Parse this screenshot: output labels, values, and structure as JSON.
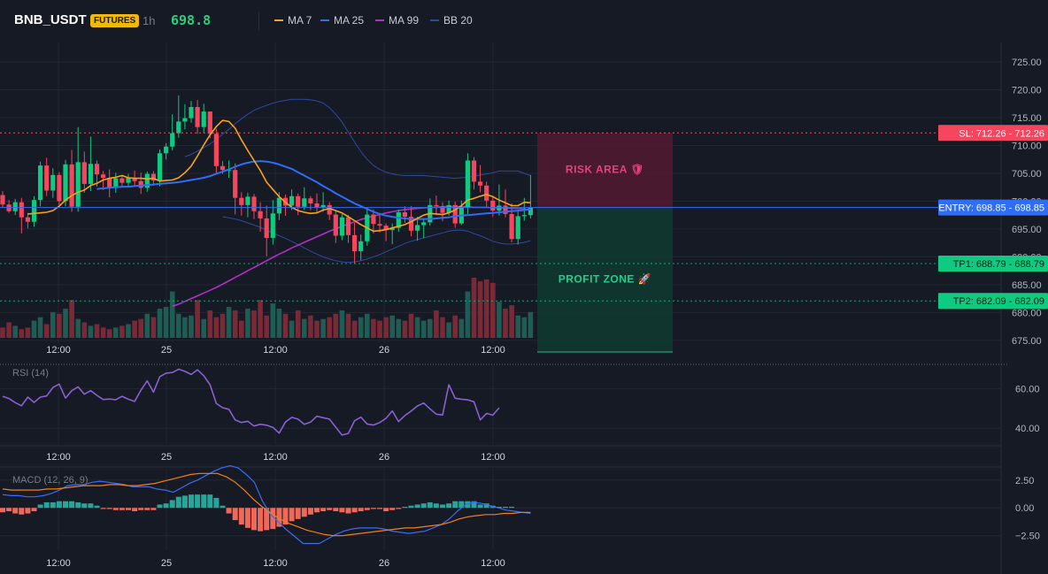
{
  "header": {
    "symbol": "BNB_USDT",
    "badge": "FUTURES",
    "interval": "1h",
    "price": "698.8"
  },
  "legend": [
    {
      "label": "MA 7",
      "color": "#f7a21b"
    },
    {
      "label": "MA 25",
      "color": "#2f6df6"
    },
    {
      "label": "MA 99",
      "color": "#b32fc7"
    },
    {
      "label": "BB 20",
      "color": "#2d4a9e"
    }
  ],
  "colors": {
    "up": "#0ecb81",
    "down": "#f6465d",
    "vol_up": "#1f5d54",
    "vol_down": "#7a2a37",
    "rsi": "#8a5fd1",
    "macd": "#3b6cf2",
    "signal": "#f2801b",
    "hist_up": "#26a69a",
    "hist_down": "#f0685a"
  },
  "chart_data": [
    {
      "type": "candlestick",
      "title": "BNB_USDT",
      "x_tick_labels": [
        "12:00",
        "25",
        "12:00",
        "26",
        "12:00"
      ],
      "y_tick_labels": [
        "725.00",
        "720.00",
        "715.00",
        "710.00",
        "705.00",
        "700.00",
        "695.00",
        "690.00",
        "685.00",
        "680.00",
        "675.00"
      ],
      "ylim": [
        674.5,
        728.5
      ],
      "candles": [
        [
          701.1,
          701.8,
          698.8,
          699.4
        ],
        [
          699.4,
          700.2,
          697.9,
          698.2
        ],
        [
          698.2,
          700.4,
          697.5,
          699.8
        ],
        [
          699.8,
          700.6,
          694.2,
          697.1
        ],
        [
          697.1,
          697.9,
          695.1,
          696.3
        ],
        [
          696.3,
          700.9,
          695.4,
          700.2
        ],
        [
          700.2,
          707.1,
          699.1,
          706.4
        ],
        [
          706.4,
          707.8,
          700.9,
          701.9
        ],
        [
          701.9,
          705.9,
          700.6,
          704.7
        ],
        [
          704.7,
          705.2,
          699.2,
          700.0
        ],
        [
          700.0,
          707.4,
          699.1,
          706.6
        ],
        [
          706.6,
          709.2,
          698.1,
          699.0
        ],
        [
          699.0,
          713.3,
          698.1,
          707.0
        ],
        [
          707.0,
          708.9,
          701.5,
          703.1
        ],
        [
          703.1,
          711.6,
          701.8,
          706.7
        ],
        [
          706.7,
          707.3,
          702.6,
          704.8
        ],
        [
          704.8,
          705.4,
          702.0,
          704.2
        ],
        [
          704.2,
          705.7,
          700.7,
          702.4
        ],
        [
          702.4,
          705.1,
          701.5,
          704.1
        ],
        [
          704.1,
          704.7,
          702.4,
          703.3
        ],
        [
          703.3,
          704.9,
          702.6,
          704.2
        ],
        [
          704.2,
          705.5,
          702.8,
          703.6
        ],
        [
          703.6,
          705.1,
          701.3,
          702.4
        ],
        [
          702.4,
          705.3,
          701.7,
          704.9
        ],
        [
          704.9,
          705.4,
          702.8,
          703.7
        ],
        [
          703.7,
          709.3,
          702.7,
          708.6
        ],
        [
          708.6,
          710.4,
          707.5,
          709.8
        ],
        [
          709.8,
          715.6,
          709.1,
          712.2
        ],
        [
          712.2,
          719.0,
          711.4,
          714.3
        ],
        [
          714.3,
          717.4,
          712.9,
          714.9
        ],
        [
          714.9,
          718.0,
          714.1,
          716.9
        ],
        [
          716.9,
          718.2,
          712.1,
          713.3
        ],
        [
          713.3,
          717.5,
          712.2,
          716.1
        ],
        [
          716.1,
          715.7,
          711.3,
          712.1
        ],
        [
          712.1,
          713.0,
          704.8,
          706.3
        ],
        [
          706.3,
          707.2,
          704.9,
          705.6
        ],
        [
          705.6,
          707.3,
          704.2,
          705.6
        ],
        [
          705.6,
          706.8,
          697.6,
          700.6
        ],
        [
          700.6,
          701.6,
          697.4,
          699.3
        ],
        [
          699.3,
          701.5,
          697.1,
          700.8
        ],
        [
          700.8,
          701.3,
          696.8,
          698.2
        ],
        [
          698.2,
          699.8,
          694.5,
          696.9
        ],
        [
          696.9,
          699.2,
          690.1,
          693.4
        ],
        [
          693.4,
          700.2,
          692.2,
          697.8
        ],
        [
          697.8,
          701.6,
          696.6,
          700.6
        ],
        [
          700.6,
          701.2,
          697.4,
          699.2
        ],
        [
          699.2,
          702.1,
          698.4,
          700.9
        ],
        [
          700.9,
          701.4,
          697.5,
          699.0
        ],
        [
          699.0,
          702.5,
          698.4,
          700.5
        ],
        [
          700.5,
          700.9,
          698.4,
          699.6
        ],
        [
          699.6,
          701.4,
          697.8,
          698.8
        ],
        [
          698.8,
          701.6,
          698.1,
          699.3
        ],
        [
          699.3,
          699.8,
          696.6,
          697.6
        ],
        [
          697.6,
          698.2,
          692.5,
          693.8
        ],
        [
          693.8,
          697.7,
          693.0,
          697.1
        ],
        [
          697.1,
          697.5,
          692.5,
          693.9
        ],
        [
          693.9,
          696.1,
          688.8,
          691.0
        ],
        [
          691.0,
          694.0,
          689.4,
          692.8
        ],
        [
          692.8,
          698.9,
          692.0,
          697.6
        ],
        [
          697.6,
          698.5,
          694.2,
          695.9
        ],
        [
          695.9,
          697.7,
          694.4,
          695.6
        ],
        [
          695.6,
          696.0,
          692.8,
          694.8
        ],
        [
          694.8,
          696.0,
          692.3,
          695.2
        ],
        [
          695.2,
          698.5,
          694.5,
          698.0
        ],
        [
          698.0,
          699.1,
          696.1,
          697.2
        ],
        [
          697.2,
          699.1,
          693.7,
          694.7
        ],
        [
          694.7,
          697.2,
          692.9,
          695.7
        ],
        [
          695.7,
          696.8,
          693.4,
          696.2
        ],
        [
          696.2,
          700.5,
          695.6,
          699.3
        ],
        [
          699.3,
          701.0,
          697.5,
          699.1
        ],
        [
          699.1,
          699.8,
          696.4,
          697.9
        ],
        [
          697.9,
          700.1,
          697.4,
          699.3
        ],
        [
          699.3,
          699.9,
          695.2,
          696.0
        ],
        [
          696.0,
          700.1,
          695.7,
          698.8
        ],
        [
          698.8,
          708.6,
          697.7,
          707.3
        ],
        [
          707.3,
          707.9,
          702.1,
          703.5
        ],
        [
          703.5,
          706.5,
          701.6,
          702.8
        ],
        [
          702.8,
          703.5,
          699.0,
          700.1
        ],
        [
          700.1,
          701.0,
          697.2,
          698.3
        ],
        [
          698.3,
          703.0,
          697.4,
          699.2
        ],
        [
          699.2,
          702.1,
          697.1,
          697.7
        ],
        [
          697.7,
          699.6,
          692.6,
          693.2
        ],
        [
          693.2,
          698.5,
          692.2,
          697.3
        ],
        [
          697.3,
          700.6,
          696.5,
          697.5
        ],
        [
          697.5,
          704.7,
          696.9,
          698.8
        ]
      ],
      "volume": [
        6,
        9,
        7,
        5,
        6,
        10,
        12,
        8,
        15,
        14,
        17,
        22,
        11,
        9,
        7,
        8,
        6,
        5,
        6,
        7,
        8,
        10,
        11,
        14,
        12,
        17,
        18,
        27,
        14,
        12,
        13,
        22,
        11,
        16,
        12,
        14,
        18,
        16,
        10,
        17,
        16,
        22,
        13,
        20,
        17,
        14,
        10,
        16,
        11,
        13,
        10,
        11,
        12,
        14,
        16,
        14,
        10,
        12,
        14,
        11,
        10,
        12,
        13,
        11,
        10,
        14,
        12,
        10,
        11,
        16,
        12,
        9,
        13,
        11,
        27,
        35,
        33,
        34,
        32,
        21,
        17,
        19,
        13,
        12,
        15
      ],
      "ma7": [
        697.7,
        697.8,
        697.9,
        698.0,
        698.3,
        699.1,
        700.2,
        701.0,
        701.6,
        702.0,
        702.8,
        703.2,
        703.8,
        704.1,
        704.3,
        704.6,
        704.2,
        704.1,
        704.1,
        704.0,
        704.1,
        703.6,
        703.7,
        703.8,
        704.2,
        705.1,
        706.3,
        708.1,
        710.1,
        711.9,
        713.4,
        714.5,
        714.3,
        713.1,
        711.0,
        709.1,
        707.3,
        705.5,
        703.4,
        702.1,
        700.8,
        699.8,
        698.9,
        698.3,
        698.0,
        697.8,
        697.9,
        698.4,
        698.7,
        698.3,
        697.9,
        697.2,
        696.5,
        695.8,
        695.2,
        694.6,
        694.7,
        694.9,
        695.2,
        695.5,
        695.8,
        696.3,
        696.9,
        697.5,
        697.8,
        697.7,
        697.6,
        697.9,
        698.4,
        699.2,
        700.2,
        700.5,
        700.9,
        701.2,
        700.8,
        700.2,
        699.7,
        699.2,
        699.2,
        699.8,
        699.7
      ],
      "ma25": [
        702.2,
        702.3,
        702.4,
        702.5,
        702.6,
        702.6,
        702.7,
        702.8,
        702.9,
        703.0,
        703.1,
        703.2,
        703.3,
        703.4,
        703.6,
        703.8,
        704.0,
        704.2,
        704.5,
        704.9,
        705.3,
        705.7,
        706.2,
        706.6,
        706.9,
        707.1,
        707.2,
        707.1,
        706.9,
        706.6,
        706.2,
        705.8,
        705.2,
        704.6,
        704.0,
        703.4,
        702.7,
        702.1,
        701.4,
        700.8,
        700.2,
        699.6,
        699.1,
        698.6,
        698.1,
        697.7,
        697.4,
        697.2,
        697.0,
        696.9,
        696.8,
        696.8,
        696.8,
        696.8,
        696.9,
        697.0,
        697.1,
        697.3,
        697.4,
        697.5,
        697.6,
        697.7,
        697.8,
        697.9,
        698.0,
        698.1,
        698.2,
        698.3,
        698.4,
        698.5
      ],
      "ma99": [
        681.1,
        681.5,
        682.0,
        682.5,
        683.0,
        683.5,
        684.0,
        684.5,
        685.1,
        685.7,
        686.3,
        686.9,
        687.5,
        688.1,
        688.7,
        689.3,
        689.9,
        690.5,
        691.0,
        691.6,
        692.1,
        692.6,
        693.1,
        693.6,
        694.1,
        694.6,
        695.0,
        695.5,
        695.9,
        696.3,
        696.7,
        697.0,
        697.3,
        697.6,
        697.9,
        698.1,
        698.3,
        698.5,
        698.6,
        698.7,
        698.8,
        698.9,
        698.9,
        699.0,
        699.0,
        699.0,
        699.0,
        699.0,
        698.9,
        698.9,
        698.9,
        698.8,
        698.8,
        698.8,
        698.7,
        698.7,
        698.6,
        698.5
      ],
      "bb_upper": [
        708.0,
        708.4,
        709.0,
        709.6,
        710.3,
        711.1,
        712.0,
        712.9,
        713.9,
        714.8,
        715.6,
        716.3,
        716.8,
        717.2,
        717.6,
        717.9,
        718.1,
        718.3,
        718.3,
        718.3,
        718.2,
        718.0,
        717.6,
        716.8,
        715.6,
        714.2,
        712.4,
        710.6,
        708.9,
        707.5,
        706.4,
        705.7,
        705.2,
        704.9,
        704.7,
        704.6,
        704.6,
        704.6,
        704.6,
        704.5,
        704.4,
        704.3,
        704.2,
        704.1,
        704.2,
        704.3,
        704.5,
        704.7,
        704.9,
        705.1,
        705.4,
        705.4,
        705.4,
        705.4,
        705.0,
        704.6
      ],
      "bb_lower": [
        697.2,
        697.0,
        696.8,
        696.5,
        696.1,
        695.7,
        695.3,
        694.8,
        694.3,
        693.8,
        693.3,
        692.8,
        692.2,
        691.6,
        691.0,
        690.5,
        690.0,
        689.6,
        689.3,
        689.1,
        689.0,
        689.1,
        689.3,
        689.6,
        690.0,
        690.4,
        690.9,
        691.4,
        691.9,
        692.4,
        692.8,
        693.1,
        693.4,
        693.7,
        694.0,
        694.3,
        694.6,
        694.8,
        694.8,
        694.6,
        694.2,
        693.8,
        693.3,
        692.8,
        692.5,
        692.3,
        692.3,
        692.4,
        692.6,
        692.9
      ],
      "price_lines": [
        {
          "label": "SL: 712.26 - 712.26",
          "value": 712.26,
          "color": "#f6465d"
        },
        {
          "label": "ENTRY: 698.85 - 698.85",
          "value": 698.85,
          "color": "#2f6df6"
        },
        {
          "label": "TP1: 688.79 - 688.79",
          "value": 688.79,
          "color": "#0ecb81"
        },
        {
          "label": "TP2: 682.09 - 682.09",
          "value": 682.09,
          "color": "#0ecb81"
        }
      ],
      "zones": [
        {
          "label": "RISK AREA 🛡",
          "from": 698.85,
          "to": 712.26
        },
        {
          "label": "PROFIT ZONE 🚀",
          "from": 674.5,
          "to": 698.85
        }
      ]
    },
    {
      "type": "line",
      "title": "RSI (14)",
      "y_tick_labels": [
        "60.00",
        "40.00"
      ],
      "ylim": [
        31.5,
        72.0
      ],
      "values": [
        56.2,
        55.1,
        53.0,
        51.4,
        55.8,
        53.1,
        55.8,
        56.4,
        60.7,
        62.4,
        55.3,
        59.1,
        61.0,
        57.3,
        59.1,
        56.7,
        54.6,
        54.8,
        54.5,
        56.2,
        54.7,
        53.6,
        59.3,
        64.1,
        58.3,
        66.2,
        68.0,
        68.3,
        70.0,
        68.9,
        67.3,
        69.7,
        66.7,
        62.1,
        52.6,
        50.4,
        49.6,
        44.2,
        42.9,
        43.5,
        41.1,
        42.0,
        41.5,
        40.4,
        37.5,
        43.1,
        45.5,
        44.6,
        42.0,
        43.1,
        46.1,
        45.3,
        44.6,
        40.5,
        36.5,
        37.3,
        43.8,
        45.6,
        42.1,
        41.6,
        42.9,
        45.0,
        48.8,
        43.4,
        46.4,
        48.7,
        51.3,
        52.8,
        49.8,
        47.1,
        46.7,
        62.1,
        55.2,
        54.7,
        54.4,
        53.4,
        44.2,
        47.5,
        46.6,
        50.4
      ]
    },
    {
      "type": "bar",
      "title": "MACD (12, 26, 9)",
      "y_tick_labels": [
        "2.50",
        "0.00",
        "−2.50"
      ],
      "ylim": [
        -3.8,
        3.6
      ],
      "histogram": [
        -0.4,
        -0.3,
        -0.5,
        -0.6,
        -0.5,
        -0.3,
        0.3,
        0.5,
        0.5,
        0.6,
        0.6,
        0.6,
        0.5,
        0.4,
        0.4,
        0.2,
        -0.1,
        -0.1,
        -0.2,
        -0.2,
        -0.2,
        -0.3,
        -0.2,
        -0.2,
        -0.2,
        0.3,
        0.4,
        0.7,
        1.0,
        1.1,
        1.2,
        1.2,
        1.2,
        1.2,
        0.9,
        0.2,
        -0.5,
        -1.1,
        -1.5,
        -1.8,
        -2.0,
        -2.1,
        -2.0,
        -1.9,
        -1.7,
        -1.5,
        -1.2,
        -1.0,
        -0.8,
        -0.6,
        -0.4,
        -0.3,
        -0.2,
        -0.3,
        -0.4,
        -0.5,
        -0.4,
        -0.3,
        -0.2,
        -0.1,
        -0.1,
        -0.3,
        -0.2,
        -0.1,
        0.1,
        0.2,
        0.3,
        0.4,
        0.5,
        0.4,
        0.3,
        0.4,
        0.6,
        0.6,
        0.6,
        0.6,
        0.3,
        0.4,
        0.2,
        0.1,
        0.1,
        0.1
      ],
      "macd": [
        1.2,
        1.1,
        1.1,
        1.0,
        1.0,
        1.1,
        1.3,
        1.6,
        2.0,
        2.1,
        2.1,
        2.3,
        2.4,
        2.3,
        2.2,
        2.1,
        1.9,
        1.9,
        1.9,
        1.7,
        1.6,
        1.4,
        1.8,
        2.2,
        2.5,
        2.9,
        3.3,
        3.6,
        3.8,
        3.6,
        3.0,
        2.3,
        0.6,
        -0.6,
        -1.3,
        -2.0,
        -2.6,
        -3.2,
        -3.2,
        -3.2,
        -2.8,
        -2.4,
        -2.1,
        -1.9,
        -1.8,
        -1.8,
        -1.8,
        -1.9,
        -2.1,
        -2.2,
        -2.3,
        -2.2,
        -2.1,
        -1.8,
        -1.5,
        -1.0,
        -0.3,
        0.3,
        0.5,
        0.4,
        0.2,
        0.0,
        -0.2,
        -0.3,
        -0.4,
        -0.5
      ],
      "signal": [
        1.7,
        1.6,
        1.6,
        1.6,
        1.6,
        1.7,
        1.7,
        1.8,
        1.9,
        2.0,
        2.0,
        2.0,
        2.1,
        2.1,
        2.0,
        2.0,
        2.1,
        2.2,
        2.4,
        2.6,
        2.8,
        3.0,
        3.1,
        3.1,
        3.1,
        2.8,
        2.3,
        1.6,
        0.8,
        0.1,
        -0.5,
        -1.0,
        -1.4,
        -1.7,
        -2.0,
        -2.2,
        -2.4,
        -2.5,
        -2.5,
        -2.4,
        -2.3,
        -2.2,
        -2.1,
        -2.0,
        -1.9,
        -1.8,
        -1.8,
        -1.7,
        -1.6,
        -1.5,
        -1.3,
        -1.0,
        -0.8,
        -0.7,
        -0.6,
        -0.6,
        -0.5,
        -0.5,
        -0.4,
        -0.4
      ]
    }
  ]
}
